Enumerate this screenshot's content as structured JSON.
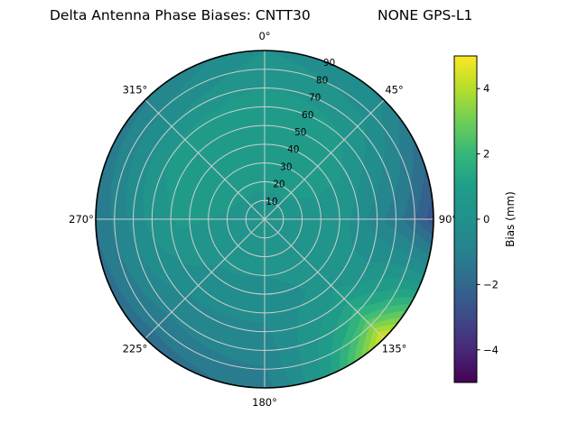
{
  "chart": {
    "title_left": "Delta Antenna Phase Biases: CNTT30",
    "title_right": "NONE GPS-L1"
  },
  "chart_data": {
    "type": "heatmap",
    "projection": "polar",
    "title": "Delta Antenna Phase Biases: CNTT30   NONE GPS-L1",
    "colorbar": {
      "label": "Bias (mm)",
      "vmin": -5,
      "vmax": 5,
      "tick_values": [
        4,
        2,
        0,
        -2,
        -4
      ],
      "tick_labels": [
        "4",
        "2",
        "0",
        "−2",
        "−4"
      ]
    },
    "colormap": {
      "name": "viridis",
      "stops": [
        [
          0.0,
          "#440154"
        ],
        [
          0.1,
          "#482878"
        ],
        [
          0.2,
          "#3e4a89"
        ],
        [
          0.3,
          "#31688e"
        ],
        [
          0.4,
          "#26828e"
        ],
        [
          0.5,
          "#21918c"
        ],
        [
          0.6,
          "#1f9e89"
        ],
        [
          0.7,
          "#35b779"
        ],
        [
          0.8,
          "#6ece58"
        ],
        [
          0.9,
          "#b5de2b"
        ],
        [
          1.0,
          "#fde725"
        ]
      ]
    },
    "grid_on": true,
    "grid_color": "#cfcfcf",
    "azimuth_tick_values": [
      0,
      45,
      90,
      135,
      180,
      225,
      270,
      315
    ],
    "azimuth_tick_labels": [
      "0°",
      "45°",
      "90°",
      "135°",
      "180°",
      "225°",
      "270°",
      "315°"
    ],
    "radial_tick_values": [
      10,
      20,
      30,
      40,
      50,
      60,
      70,
      80,
      90
    ],
    "radial_tick_labels": [
      "10",
      "20",
      "30",
      "40",
      "50",
      "60",
      "70",
      "80",
      "90"
    ],
    "radial_label_angle_deg": 22.5,
    "radial_max": 90,
    "contour_level_step_mm": 0.5,
    "grid": {
      "azimuths_deg": [
        0,
        22.5,
        45,
        67.5,
        90,
        112.5,
        135,
        157.5,
        180,
        202.5,
        225,
        247.5,
        270,
        292.5,
        315,
        337.5
      ],
      "zeniths_deg": [
        0,
        15,
        30,
        45,
        60,
        75,
        90
      ],
      "bias_mm": [
        [
          0.3,
          0.3,
          0.3,
          0.3,
          0.3,
          0.3,
          0.3,
          0.3,
          0.3,
          0.3,
          0.3,
          0.3,
          0.3,
          0.3,
          0.3,
          0.3
        ],
        [
          0.5,
          0.5,
          0.5,
          0.4,
          0.3,
          0.3,
          0.3,
          0.25,
          0.2,
          0.25,
          0.3,
          0.35,
          0.4,
          0.45,
          0.5,
          0.5
        ],
        [
          0.8,
          0.8,
          0.7,
          0.5,
          0.3,
          0.25,
          0.2,
          0.1,
          0.0,
          0.05,
          0.1,
          0.3,
          0.5,
          0.7,
          0.8,
          0.8
        ],
        [
          1.0,
          0.9,
          0.8,
          0.4,
          0.0,
          0.1,
          0.2,
          -0.1,
          -0.3,
          -0.3,
          -0.2,
          0.2,
          0.6,
          0.8,
          1.0,
          1.0
        ],
        [
          0.8,
          0.7,
          0.5,
          -0.2,
          -0.8,
          0.0,
          0.8,
          0.2,
          -0.6,
          -0.6,
          -0.6,
          -0.2,
          0.2,
          0.4,
          0.6,
          0.7
        ],
        [
          0.4,
          0.2,
          0.0,
          -0.8,
          -1.6,
          0.3,
          2.2,
          0.5,
          -0.9,
          -1.0,
          -1.1,
          -0.9,
          -0.6,
          -0.4,
          -0.3,
          0.0
        ],
        [
          0.0,
          -0.3,
          -0.6,
          -1.8,
          -2.8,
          0.5,
          4.8,
          0.8,
          -1.3,
          -1.6,
          -1.8,
          -1.7,
          -1.5,
          -1.3,
          -1.1,
          -0.6
        ]
      ]
    }
  }
}
